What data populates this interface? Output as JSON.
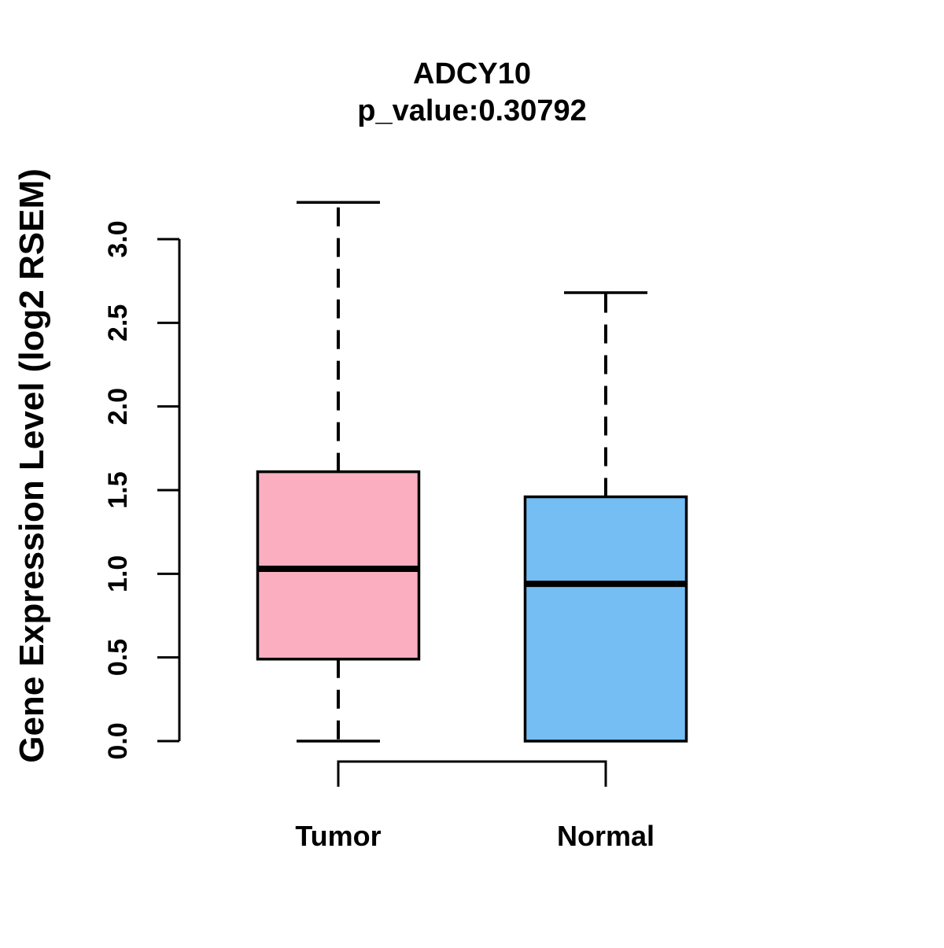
{
  "title": "ADCY10",
  "subtitle": "p_value:0.30792",
  "chart_data": {
    "type": "boxplot",
    "title": "ADCY10",
    "subtitle": "p_value:0.30792",
    "ylabel": "Gene Expression Level (log2 RSEM)",
    "xlabel": "",
    "ylim": [
      0.0,
      3.0
    ],
    "ytick_labels": [
      "0.0",
      "0.5",
      "1.0",
      "1.5",
      "2.0",
      "2.5",
      "3.0"
    ],
    "categories": [
      "Tumor",
      "Normal"
    ],
    "series": [
      {
        "name": "Tumor",
        "color": "#FBAEC0",
        "lower_whisker": 0.0,
        "q1": 0.49,
        "median": 1.03,
        "q3": 1.61,
        "upper_whisker": 3.22
      },
      {
        "name": "Normal",
        "color": "#74BEF4",
        "lower_whisker": 0.0,
        "q1": 0.0,
        "median": 0.94,
        "q3": 1.46,
        "upper_whisker": 2.68
      }
    ],
    "grid": false,
    "legend": "none",
    "outliers": []
  },
  "colors": {
    "line": "#000000",
    "background": "#FFFFFF"
  }
}
